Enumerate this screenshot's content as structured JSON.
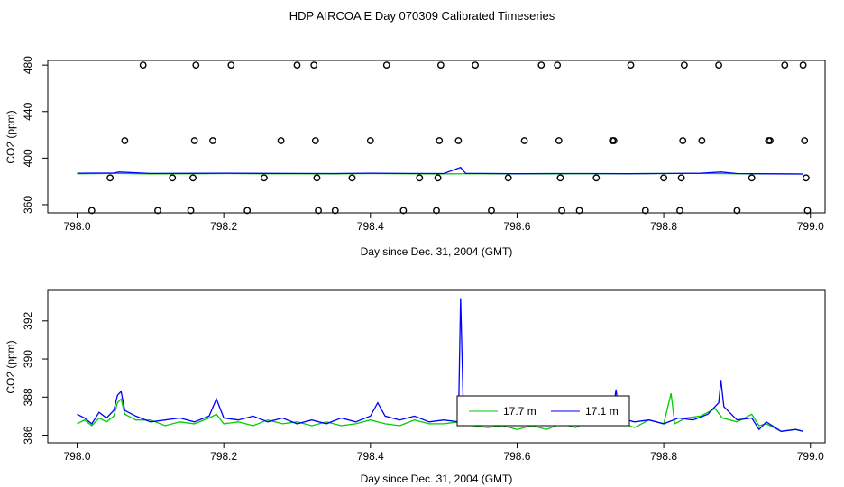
{
  "title": "HDP AIRCOA E  Day 070309  Calibrated Timeseries",
  "chart_data": [
    {
      "type": "scatter",
      "xlabel": "Day since Dec. 31, 2004 (GMT)",
      "ylabel": "CO2 (ppm)",
      "xlim": [
        797.96,
        799.02
      ],
      "ylim": [
        353,
        484
      ],
      "xticks": [
        "798.0",
        "798.2",
        "798.4",
        "798.6",
        "798.8",
        "799.0"
      ],
      "yticks": [
        "360",
        "400",
        "440",
        "480"
      ],
      "grid": false,
      "calibration_points": {
        "color": "#000000",
        "marker": "open-circle",
        "points": [
          [
            798.02,
            355
          ],
          [
            798.045,
            383
          ],
          [
            798.065,
            415
          ],
          [
            798.09,
            480
          ],
          [
            798.11,
            355
          ],
          [
            798.13,
            383
          ],
          [
            798.155,
            355
          ],
          [
            798.158,
            383
          ],
          [
            798.16,
            415
          ],
          [
            798.162,
            480
          ],
          [
            798.185,
            415
          ],
          [
            798.21,
            480
          ],
          [
            798.232,
            355
          ],
          [
            798.255,
            383
          ],
          [
            798.278,
            415
          ],
          [
            798.3,
            480
          ],
          [
            798.323,
            480
          ],
          [
            798.325,
            415
          ],
          [
            798.327,
            383
          ],
          [
            798.329,
            355
          ],
          [
            798.352,
            355
          ],
          [
            798.375,
            383
          ],
          [
            798.4,
            415
          ],
          [
            798.422,
            480
          ],
          [
            798.445,
            355
          ],
          [
            798.467,
            383
          ],
          [
            798.49,
            355
          ],
          [
            798.492,
            383
          ],
          [
            798.494,
            415
          ],
          [
            798.496,
            480
          ],
          [
            798.52,
            415
          ],
          [
            798.543,
            480
          ],
          [
            798.565,
            355
          ],
          [
            798.588,
            383
          ],
          [
            798.61,
            415
          ],
          [
            798.633,
            480
          ],
          [
            798.655,
            480
          ],
          [
            798.657,
            415
          ],
          [
            798.659,
            383
          ],
          [
            798.661,
            355
          ],
          [
            798.685,
            355
          ],
          [
            798.708,
            383
          ],
          [
            798.73,
            415
          ],
          [
            798.732,
            415
          ],
          [
            798.755,
            480
          ],
          [
            798.775,
            355
          ],
          [
            798.8,
            383
          ],
          [
            798.822,
            355
          ],
          [
            798.824,
            383
          ],
          [
            798.826,
            415
          ],
          [
            798.828,
            480
          ],
          [
            798.852,
            415
          ],
          [
            798.875,
            480
          ],
          [
            798.9,
            355
          ],
          [
            798.92,
            383
          ],
          [
            798.943,
            415
          ],
          [
            798.945,
            415
          ],
          [
            798.965,
            480
          ],
          [
            798.99,
            480
          ],
          [
            798.992,
            415
          ],
          [
            798.994,
            383
          ],
          [
            798.996,
            355
          ]
        ]
      },
      "series": [
        {
          "color": "#00cc00",
          "points": [
            [
              798.0,
              386.6
            ],
            [
              798.05,
              386.8
            ],
            [
              798.1,
              386.5
            ],
            [
              798.15,
              386.6
            ],
            [
              798.2,
              386.7
            ],
            [
              798.25,
              386.6
            ],
            [
              798.3,
              386.6
            ],
            [
              798.35,
              386.5
            ],
            [
              798.4,
              386.7
            ],
            [
              798.45,
              386.6
            ],
            [
              798.5,
              386.5
            ],
            [
              798.55,
              386.6
            ],
            [
              798.6,
              386.4
            ],
            [
              798.65,
              386.5
            ],
            [
              798.7,
              386.6
            ],
            [
              798.75,
              386.6
            ],
            [
              798.8,
              386.8
            ],
            [
              798.85,
              386.8
            ],
            [
              798.9,
              386.6
            ],
            [
              798.95,
              386.5
            ],
            [
              798.99,
              386.3
            ]
          ]
        },
        {
          "color": "#0000ff",
          "points": [
            [
              798.0,
              387.0
            ],
            [
              798.05,
              387.2
            ],
            [
              798.057,
              388.0
            ],
            [
              798.1,
              386.8
            ],
            [
              798.15,
              386.9
            ],
            [
              798.2,
              387.0
            ],
            [
              798.25,
              386.9
            ],
            [
              798.3,
              386.8
            ],
            [
              798.35,
              386.7
            ],
            [
              798.4,
              387.0
            ],
            [
              798.45,
              386.8
            ],
            [
              798.5,
              386.7
            ],
            [
              798.523,
              392.0
            ],
            [
              798.53,
              386.8
            ],
            [
              798.55,
              386.8
            ],
            [
              798.6,
              386.6
            ],
            [
              798.65,
              386.7
            ],
            [
              798.7,
              386.7
            ],
            [
              798.75,
              386.6
            ],
            [
              798.8,
              386.7
            ],
            [
              798.85,
              387.0
            ],
            [
              798.878,
              388.0
            ],
            [
              798.9,
              386.7
            ],
            [
              798.95,
              386.5
            ],
            [
              798.99,
              386.3
            ]
          ]
        }
      ]
    },
    {
      "type": "line",
      "xlabel": "Day since Dec. 31, 2004 (GMT)",
      "ylabel": "CO2 (ppm)",
      "xlim": [
        797.96,
        799.02
      ],
      "ylim": [
        385.6,
        393.6
      ],
      "xticks": [
        "798.0",
        "798.2",
        "798.4",
        "798.6",
        "798.8",
        "799.0"
      ],
      "yticks": [
        "386",
        "388",
        "390",
        "392"
      ],
      "grid": false,
      "legend": "center",
      "series": [
        {
          "name": "17.7 m",
          "color": "#00cc00",
          "points": [
            [
              798.0,
              386.6
            ],
            [
              798.01,
              386.8
            ],
            [
              798.02,
              386.5
            ],
            [
              798.03,
              386.9
            ],
            [
              798.04,
              386.7
            ],
            [
              798.05,
              387.0
            ],
            [
              798.055,
              387.7
            ],
            [
              798.06,
              387.9
            ],
            [
              798.065,
              387.1
            ],
            [
              798.08,
              386.8
            ],
            [
              798.1,
              386.8
            ],
            [
              798.12,
              386.5
            ],
            [
              798.14,
              386.7
            ],
            [
              798.16,
              386.6
            ],
            [
              798.18,
              386.9
            ],
            [
              798.19,
              387.1
            ],
            [
              798.2,
              386.6
            ],
            [
              798.22,
              386.7
            ],
            [
              798.24,
              386.5
            ],
            [
              798.26,
              386.8
            ],
            [
              798.28,
              386.6
            ],
            [
              798.3,
              386.7
            ],
            [
              798.32,
              386.5
            ],
            [
              798.34,
              386.7
            ],
            [
              798.36,
              386.5
            ],
            [
              798.38,
              386.6
            ],
            [
              798.4,
              386.8
            ],
            [
              798.42,
              386.6
            ],
            [
              798.44,
              386.5
            ],
            [
              798.46,
              386.8
            ],
            [
              798.48,
              386.6
            ],
            [
              798.5,
              386.6
            ],
            [
              798.52,
              386.7
            ],
            [
              798.54,
              386.5
            ],
            [
              798.56,
              386.4
            ],
            [
              798.58,
              386.5
            ],
            [
              798.6,
              386.3
            ],
            [
              798.62,
              386.5
            ],
            [
              798.64,
              386.3
            ],
            [
              798.66,
              386.6
            ],
            [
              798.68,
              386.4
            ],
            [
              798.7,
              386.8
            ],
            [
              798.72,
              386.5
            ],
            [
              798.74,
              386.7
            ],
            [
              798.76,
              386.4
            ],
            [
              798.78,
              386.8
            ],
            [
              798.8,
              386.6
            ],
            [
              798.81,
              388.2
            ],
            [
              798.815,
              386.6
            ],
            [
              798.83,
              386.9
            ],
            [
              798.85,
              387.0
            ],
            [
              798.87,
              387.4
            ],
            [
              798.88,
              386.9
            ],
            [
              798.9,
              386.7
            ],
            [
              798.92,
              387.1
            ],
            [
              798.93,
              386.5
            ],
            [
              798.94,
              386.6
            ],
            [
              798.96,
              386.2
            ],
            [
              798.98,
              386.3
            ],
            [
              798.99,
              386.2
            ]
          ]
        },
        {
          "name": "17.1 m",
          "color": "#0000ff",
          "points": [
            [
              798.0,
              387.1
            ],
            [
              798.01,
              386.9
            ],
            [
              798.02,
              386.6
            ],
            [
              798.03,
              387.2
            ],
            [
              798.04,
              386.9
            ],
            [
              798.05,
              387.3
            ],
            [
              798.055,
              388.1
            ],
            [
              798.06,
              388.3
            ],
            [
              798.065,
              387.3
            ],
            [
              798.08,
              387.0
            ],
            [
              798.1,
              386.7
            ],
            [
              798.12,
              386.8
            ],
            [
              798.14,
              386.9
            ],
            [
              798.16,
              386.7
            ],
            [
              798.18,
              387.0
            ],
            [
              798.19,
              387.9
            ],
            [
              798.2,
              386.9
            ],
            [
              798.22,
              386.8
            ],
            [
              798.24,
              387.0
            ],
            [
              798.26,
              386.7
            ],
            [
              798.28,
              386.9
            ],
            [
              798.3,
              386.6
            ],
            [
              798.32,
              386.8
            ],
            [
              798.34,
              386.6
            ],
            [
              798.36,
              386.9
            ],
            [
              798.38,
              386.7
            ],
            [
              798.4,
              387.0
            ],
            [
              798.41,
              387.7
            ],
            [
              798.42,
              387.0
            ],
            [
              798.44,
              386.8
            ],
            [
              798.46,
              387.0
            ],
            [
              798.48,
              386.7
            ],
            [
              798.5,
              386.8
            ],
            [
              798.52,
              386.7
            ],
            [
              798.523,
              393.2
            ],
            [
              798.527,
              386.9
            ],
            [
              798.54,
              386.7
            ],
            [
              798.56,
              386.6
            ],
            [
              798.58,
              386.8
            ],
            [
              798.6,
              386.6
            ],
            [
              798.62,
              386.8
            ],
            [
              798.64,
              386.5
            ],
            [
              798.65,
              387.5
            ],
            [
              798.66,
              386.7
            ],
            [
              798.68,
              386.6
            ],
            [
              798.7,
              386.9
            ],
            [
              798.72,
              386.6
            ],
            [
              798.73,
              387.1
            ],
            [
              798.735,
              388.4
            ],
            [
              798.74,
              386.9
            ],
            [
              798.76,
              386.7
            ],
            [
              798.78,
              386.8
            ],
            [
              798.8,
              386.6
            ],
            [
              798.82,
              386.9
            ],
            [
              798.84,
              386.8
            ],
            [
              798.86,
              387.1
            ],
            [
              798.875,
              387.7
            ],
            [
              798.878,
              388.9
            ],
            [
              798.882,
              387.5
            ],
            [
              798.9,
              386.8
            ],
            [
              798.92,
              386.9
            ],
            [
              798.93,
              386.3
            ],
            [
              798.94,
              386.7
            ],
            [
              798.96,
              386.2
            ],
            [
              798.98,
              386.3
            ],
            [
              798.99,
              386.2
            ]
          ]
        }
      ]
    }
  ]
}
